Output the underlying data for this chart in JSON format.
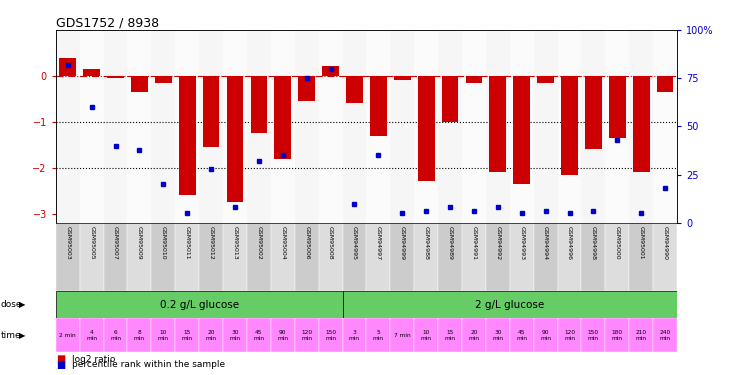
{
  "title": "GDS1752 / 8938",
  "samples": [
    "GSM95003",
    "GSM95005",
    "GSM95007",
    "GSM95009",
    "GSM95010",
    "GSM95011",
    "GSM95012",
    "GSM95013",
    "GSM95002",
    "GSM95004",
    "GSM95006",
    "GSM95008",
    "GSM94995",
    "GSM94997",
    "GSM94999",
    "GSM94988",
    "GSM94989",
    "GSM94991",
    "GSM94992",
    "GSM94993",
    "GSM94994",
    "GSM94996",
    "GSM94998",
    "GSM95000",
    "GSM95001",
    "GSM94990"
  ],
  "log2_ratio": [
    0.4,
    0.15,
    -0.05,
    -0.35,
    -0.15,
    -2.6,
    -1.55,
    -2.75,
    -1.25,
    -1.8,
    -0.55,
    0.22,
    -0.6,
    -1.3,
    -0.1,
    -2.3,
    -1.0,
    -0.15,
    -2.1,
    -2.35,
    -0.15,
    -2.15,
    -1.6,
    -1.35,
    -2.1,
    -0.35
  ],
  "percentile": [
    82,
    60,
    40,
    38,
    20,
    5,
    28,
    8,
    32,
    35,
    75,
    80,
    10,
    35,
    5,
    6,
    8,
    6,
    8,
    5,
    6,
    5,
    6,
    43,
    5,
    18
  ],
  "dose_labels": [
    "0.2 g/L glucose",
    "2 g/L glucose"
  ],
  "dose_split": 12,
  "dose_color": "#66cc66",
  "time_labels": [
    "2 min",
    "4\nmin",
    "6\nmin",
    "8\nmin",
    "10\nmin",
    "15\nmin",
    "20\nmin",
    "30\nmin",
    "45\nmin",
    "90\nmin",
    "120\nmin",
    "150\nmin",
    "3\nmin",
    "5\nmin",
    "7 min",
    "10\nmin",
    "15\nmin",
    "20\nmin",
    "30\nmin",
    "45\nmin",
    "90\nmin",
    "120\nmin",
    "150\nmin",
    "180\nmin",
    "210\nmin",
    "240\nmin"
  ],
  "time_bg_color": "#ff88ff",
  "bar_color": "#cc0000",
  "dot_color": "#0000cc",
  "ylim_left": [
    -3.2,
    1.0
  ],
  "ylim_right": [
    0,
    100
  ],
  "yticks_left": [
    -3,
    -2,
    -1,
    0
  ],
  "yticks_right": [
    0,
    25,
    50,
    75,
    100
  ],
  "hline_color": "#cc0000",
  "dotline_color": "black"
}
